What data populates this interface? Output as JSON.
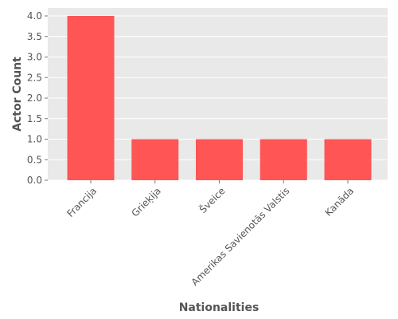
{
  "chart_data": {
    "type": "bar",
    "title": "",
    "xlabel": "Nationalities",
    "ylabel": "Actor Count",
    "categories": [
      "Francija",
      "Grieķija",
      "Šveice",
      "Amerikas Savienotās Valstis",
      "Kanāda"
    ],
    "values": [
      4.0,
      1.0,
      1.0,
      1.0,
      1.0
    ],
    "ylim": [
      0,
      4.2
    ],
    "yticks": [
      "0.0",
      "0.5",
      "1.0",
      "1.5",
      "2.0",
      "2.5",
      "3.0",
      "3.5",
      "4.0"
    ],
    "grid": true,
    "legend": "none",
    "colors": {
      "bar": "#ff5555",
      "plot_background": "#e9e9e9",
      "grid": "#ffffff",
      "text": "#555555"
    }
  }
}
